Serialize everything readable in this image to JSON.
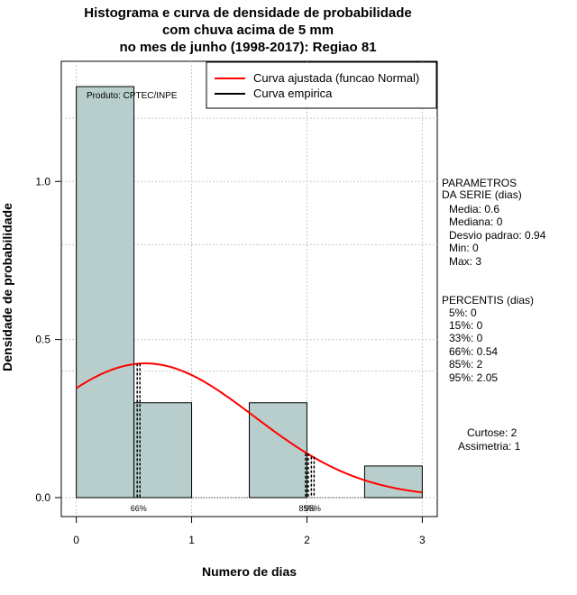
{
  "chart_data": {
    "type": "bar",
    "title_lines": [
      "Histograma e curva de densidade de probabilidade",
      "com chuva acima de 5 mm",
      "no mes de junho (1998-2017): Regiao 81"
    ],
    "xlabel": "Numero de dias",
    "ylabel": "Densidade de probabilidade",
    "xlim": [
      -0.13,
      3.13
    ],
    "ylim": [
      -0.06,
      1.38
    ],
    "x_ticks": [
      "0",
      "1",
      "2",
      "3"
    ],
    "y_ticks": [
      "0.0",
      "0.5",
      "1.0"
    ],
    "histogram": {
      "bin_edges": [
        0,
        0.5,
        1,
        1.5,
        2,
        2.5,
        3
      ],
      "density": [
        1.3,
        0.3,
        0.0,
        0.3,
        0.0,
        0.1
      ],
      "fill_color": "#b7cecd"
    },
    "fitted_curve": {
      "name": "Curva ajustada (funcao Normal)",
      "distribution": "normal",
      "mean": 0.6,
      "sd": 0.94,
      "color": "#ff0000"
    },
    "empirical_curve": {
      "name": "Curva empirica",
      "color": "#000000"
    },
    "percentile_markers": [
      {
        "x": 0.54,
        "label": "66%"
      },
      {
        "x": 2.0,
        "label": "85%"
      },
      {
        "x": 2.05,
        "label": "95%"
      }
    ],
    "product_label": "Produto: CPTEC/INPE",
    "stats": {
      "params_title": [
        "PARAMETROS",
        "DA SERIE (dias)"
      ],
      "params": [
        "Media: 0.6",
        "Mediana: 0",
        "Desvio padrao: 0.94",
        "Min: 0",
        "Max: 3"
      ],
      "percentis_title": "PERCENTIS (dias)",
      "percentis": [
        "5%: 0",
        "15%: 0",
        "33%: 0",
        "66%: 0.54",
        "85%: 2",
        "95%: 2.05"
      ],
      "extra": [
        "Curtose: 2",
        "Assimetria: 1"
      ]
    }
  }
}
